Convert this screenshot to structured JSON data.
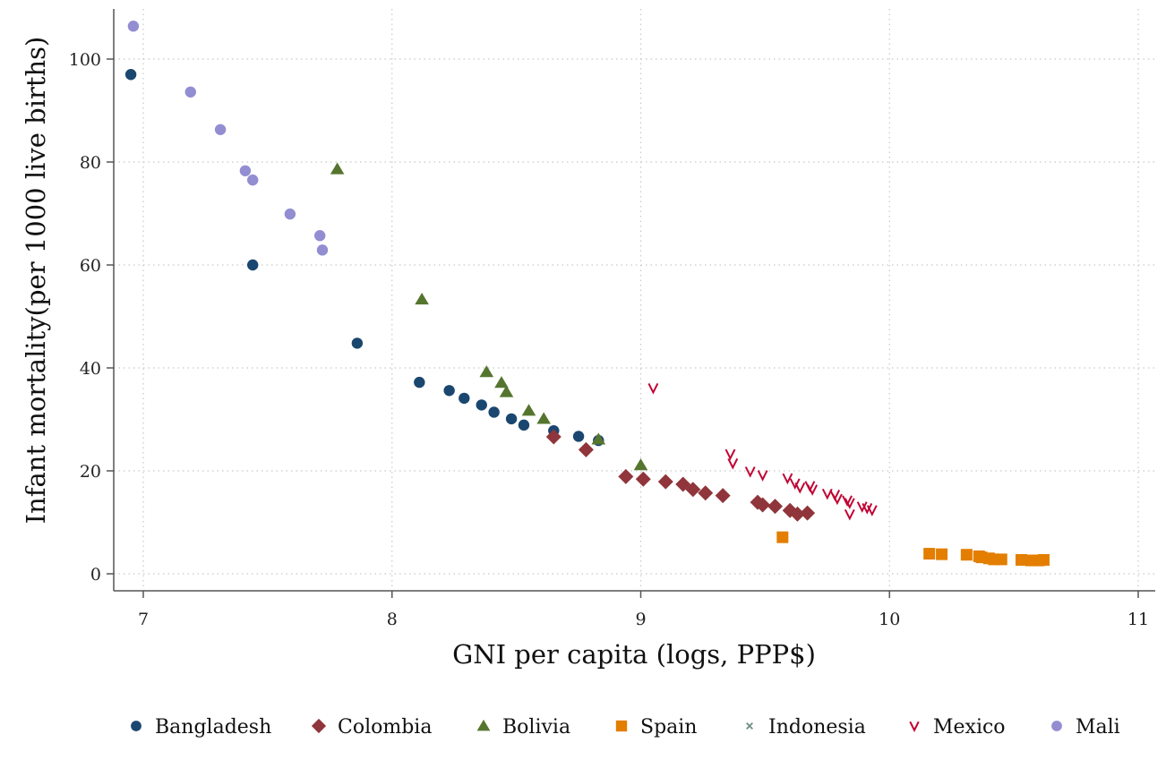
{
  "chart_data": {
    "type": "scatter",
    "title": "",
    "xlabel": "GNI per capita (logs, PPP$)",
    "ylabel": "Infant mortality(per 1000 live births)",
    "xlim": [
      6.88,
      11.05
    ],
    "ylim": [
      -3.5,
      110
    ],
    "xticks": [
      7,
      8,
      9,
      10,
      11
    ],
    "yticks": [
      0,
      20,
      40,
      60,
      80,
      100
    ],
    "grid": true,
    "legend_position": "bottom",
    "series": [
      {
        "name": "Bangladesh",
        "marker": "circle",
        "color": "#1a476f",
        "points": [
          [
            6.95,
            97
          ],
          [
            7.44,
            60
          ],
          [
            7.86,
            44.8
          ],
          [
            8.11,
            37.2
          ],
          [
            8.23,
            35.6
          ],
          [
            8.29,
            34.1
          ],
          [
            8.36,
            32.8
          ],
          [
            8.41,
            31.4
          ],
          [
            8.48,
            30.1
          ],
          [
            8.53,
            28.9
          ],
          [
            8.65,
            27.8
          ],
          [
            8.75,
            26.7
          ],
          [
            8.83,
            25.9
          ]
        ]
      },
      {
        "name": "Colombia",
        "marker": "diamond",
        "color": "#90353b",
        "points": [
          [
            8.65,
            26.6
          ],
          [
            8.78,
            24.1
          ],
          [
            8.94,
            18.9
          ],
          [
            9.01,
            18.4
          ],
          [
            9.1,
            17.9
          ],
          [
            9.17,
            17.4
          ],
          [
            9.21,
            16.4
          ],
          [
            9.26,
            15.7
          ],
          [
            9.33,
            15.2
          ],
          [
            9.47,
            13.9
          ],
          [
            9.49,
            13.4
          ],
          [
            9.54,
            13.1
          ],
          [
            9.6,
            12.3
          ],
          [
            9.63,
            11.6
          ],
          [
            9.67,
            11.8
          ]
        ]
      },
      {
        "name": "Bolivia",
        "marker": "triangle",
        "color": "#55752f",
        "points": [
          [
            7.78,
            78.6
          ],
          [
            8.12,
            53.3
          ],
          [
            8.38,
            39.2
          ],
          [
            8.44,
            37.1
          ],
          [
            8.46,
            35.3
          ],
          [
            8.55,
            31.7
          ],
          [
            8.61,
            30.1
          ],
          [
            8.83,
            26.1
          ],
          [
            9.0,
            21.1
          ]
        ]
      },
      {
        "name": "Spain",
        "marker": "square",
        "color": "#e37e00",
        "points": [
          [
            9.57,
            7.1
          ],
          [
            10.16,
            3.9
          ],
          [
            10.21,
            3.8
          ],
          [
            10.31,
            3.7
          ],
          [
            10.36,
            3.4
          ],
          [
            10.37,
            3.2
          ],
          [
            10.4,
            3.0
          ],
          [
            10.42,
            2.8
          ],
          [
            10.45,
            2.8
          ],
          [
            10.53,
            2.7
          ],
          [
            10.57,
            2.6
          ],
          [
            10.6,
            2.6
          ],
          [
            10.62,
            2.7
          ]
        ]
      },
      {
        "name": "Indonesia",
        "marker": "x",
        "color": "#6e8e84",
        "points": []
      },
      {
        "name": "Mexico",
        "marker": "v",
        "color": "#c10534",
        "points": [
          [
            9.05,
            36.1
          ],
          [
            9.36,
            23.3
          ],
          [
            9.37,
            21.5
          ],
          [
            9.44,
            19.9
          ],
          [
            9.49,
            19.2
          ],
          [
            9.59,
            18.6
          ],
          [
            9.62,
            17.6
          ],
          [
            9.64,
            16.8
          ],
          [
            9.68,
            17.1
          ],
          [
            9.69,
            16.4
          ],
          [
            9.75,
            15.6
          ],
          [
            9.78,
            15.4
          ],
          [
            9.79,
            14.6
          ],
          [
            9.83,
            14.3
          ],
          [
            9.84,
            13.8
          ],
          [
            9.84,
            11.6
          ],
          [
            9.89,
            13.1
          ],
          [
            9.91,
            12.8
          ],
          [
            9.93,
            12.4
          ]
        ]
      },
      {
        "name": "Mali",
        "marker": "circle",
        "color": "#938dd2",
        "points": [
          [
            6.96,
            106.4
          ],
          [
            7.19,
            93.6
          ],
          [
            7.31,
            86.3
          ],
          [
            7.41,
            78.3
          ],
          [
            7.44,
            76.5
          ],
          [
            7.59,
            69.9
          ],
          [
            7.71,
            65.7
          ],
          [
            7.72,
            62.9
          ]
        ]
      }
    ]
  }
}
